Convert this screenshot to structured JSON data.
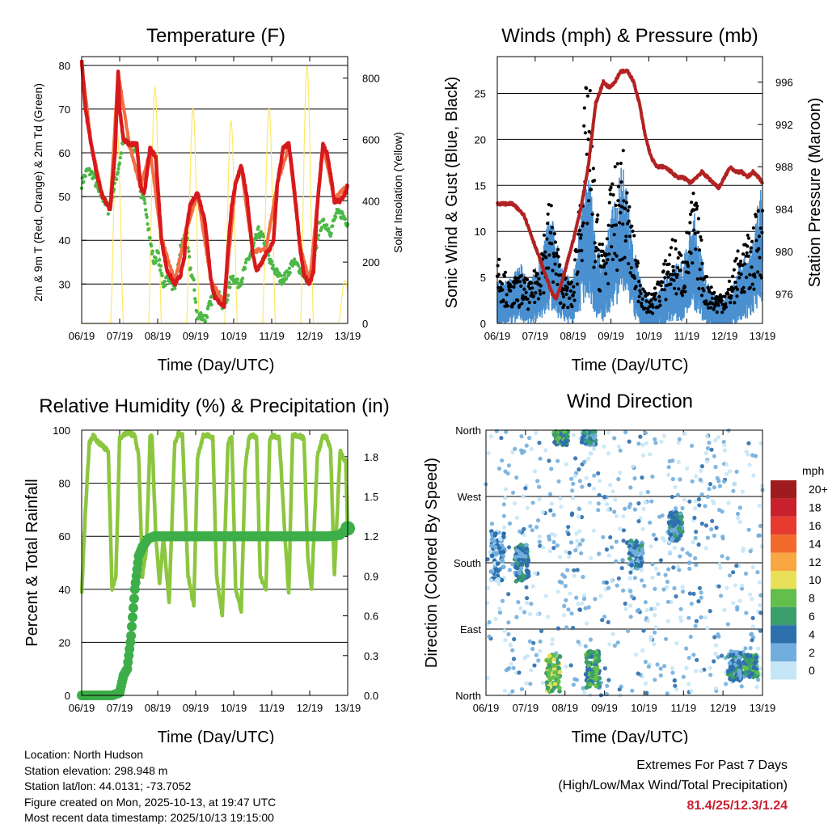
{
  "chart_data": [
    {
      "type": "line",
      "title": "Temperature (F)",
      "xlabel": "Time (Day/UTC)",
      "ylabel": "2m & 9m T (Red, Orange) & 2m Td (Green)",
      "ylabel_right": "Solar Insolation (Yellow)",
      "xticks": [
        "06/19",
        "07/19",
        "08/19",
        "09/19",
        "10/19",
        "11/19",
        "12/19",
        "13/19"
      ],
      "ylim": [
        21,
        82
      ],
      "yticks": [
        30,
        40,
        50,
        60,
        70,
        80
      ],
      "ylim_right": [
        0,
        870
      ],
      "yticks_right": [
        0,
        200,
        400,
        600,
        800
      ],
      "grid": true,
      "x_unit": "days since 06/19 19Z",
      "series": [
        {
          "name": "2m T",
          "color": "#d7191c",
          "x": [
            0,
            0.1,
            0.25,
            0.4,
            0.55,
            0.75,
            0.88,
            0.96,
            1.0,
            1.1,
            1.25,
            1.45,
            1.55,
            1.65,
            1.8,
            1.95,
            2.1,
            2.25,
            2.45,
            2.6,
            2.7,
            2.75,
            2.85,
            3.05,
            3.25,
            3.4,
            3.5,
            3.6,
            3.75,
            3.85,
            3.95,
            4.05,
            4.2,
            4.35,
            4.5,
            4.6,
            4.75,
            4.85,
            4.95,
            5.05,
            5.15,
            5.3,
            5.45,
            5.55,
            5.65,
            5.75,
            5.85,
            6.0,
            6.1,
            6.2,
            6.35,
            6.45,
            6.55,
            6.65,
            6.8,
            6.95,
            7.0
          ],
          "values": [
            81,
            70,
            62,
            55,
            50,
            47,
            60,
            79,
            70,
            63,
            62,
            62,
            52,
            51,
            61,
            59,
            40,
            33,
            30,
            32,
            36,
            42,
            48,
            51,
            44,
            31,
            27,
            26,
            25,
            38,
            48,
            53,
            57,
            50,
            37,
            33,
            35,
            37,
            38,
            40,
            53,
            61,
            62,
            55,
            47,
            38,
            32,
            30,
            33,
            48,
            62,
            60,
            55,
            49,
            49,
            51,
            53
          ]
        },
        {
          "name": "9m T",
          "color": "#f46d43",
          "x": [
            0,
            0.25,
            0.55,
            0.75,
            0.96,
            1.25,
            1.55,
            1.8,
            2.1,
            2.45,
            2.75,
            3.05,
            3.4,
            3.75,
            4.05,
            4.2,
            4.5,
            4.85,
            5.15,
            5.45,
            5.75,
            6.0,
            6.35,
            6.65,
            7.0
          ],
          "values": [
            80.5,
            62,
            50,
            47.5,
            78.5,
            62,
            52,
            60.5,
            40.5,
            30.5,
            42.5,
            50.5,
            31,
            25.5,
            53,
            56.5,
            37.5,
            38,
            53,
            61.5,
            38.5,
            30.5,
            61.5,
            49.5,
            52.5
          ]
        },
        {
          "name": "2m Td",
          "color": "#4db848",
          "x": [
            0,
            0.15,
            0.3,
            0.45,
            0.55,
            0.7,
            0.85,
            1.0,
            1.1,
            1.25,
            1.45,
            1.55,
            1.7,
            1.8,
            1.9,
            2.0,
            2.15,
            2.3,
            2.45,
            2.6,
            2.75,
            2.85,
            2.95,
            3.05,
            3.15,
            3.25,
            3.4,
            3.55,
            3.7,
            3.8,
            3.95,
            4.1,
            4.2,
            4.35,
            4.5,
            4.65,
            4.8,
            4.95,
            5.1,
            5.25,
            5.4,
            5.55,
            5.7,
            5.85,
            6.0,
            6.1,
            6.25,
            6.4,
            6.55,
            6.7,
            6.85,
            7.0
          ],
          "values": [
            53,
            56,
            55,
            51,
            50,
            47,
            52,
            58,
            63,
            62,
            61,
            51,
            47,
            40,
            35,
            37,
            30,
            32,
            28,
            38,
            42,
            34,
            30,
            22,
            23,
            22,
            26,
            29,
            25,
            26,
            32,
            30,
            31,
            35,
            38,
            42,
            40,
            35,
            33,
            31,
            32,
            35,
            34,
            32,
            31,
            34,
            43,
            44,
            42,
            46,
            46,
            44
          ]
        },
        {
          "name": "Solar Insolation",
          "color": "#fde867",
          "axis": "right",
          "peaks_x": [
            0.93,
            1.93,
            2.93,
            3.93,
            4.93,
            5.93,
            6.93
          ],
          "peaks": [
            640,
            770,
            700,
            660,
            700,
            840,
            140
          ]
        }
      ]
    },
    {
      "type": "scatter",
      "title": "Winds (mph) & Pressure (mb)",
      "xlabel": "Time (Day/UTC)",
      "ylabel": "Sonic Wind & Gust (Blue, Black)",
      "ylabel_right": "Station Pressure (Maroon)",
      "xticks": [
        "06/19",
        "07/19",
        "08/19",
        "09/19",
        "10/19",
        "11/19",
        "12/19",
        "13/19"
      ],
      "ylim": [
        0,
        29
      ],
      "yticks": [
        0,
        5,
        10,
        15,
        20,
        25
      ],
      "ylim_right": [
        973.2,
        998.4
      ],
      "yticks_right": [
        976,
        980,
        984,
        988,
        992,
        996
      ],
      "grid": true,
      "x_unit": "days since 06/19 19Z",
      "series": [
        {
          "name": "Sonic Wind",
          "color": "#4a90d0",
          "x": [
            0,
            0.3,
            0.6,
            0.9,
            1.2,
            1.4,
            1.7,
            2.0,
            2.2,
            2.4,
            2.6,
            2.8,
            3.0,
            3.3,
            3.6,
            3.9,
            4.1,
            4.4,
            4.6,
            4.9,
            5.2,
            5.5,
            5.8,
            6.1,
            6.4,
            6.7,
            7.0
          ],
          "values": [
            2,
            2,
            3,
            2,
            4,
            6,
            3,
            2,
            6,
            9,
            4,
            3,
            6,
            9,
            4,
            1,
            1,
            2,
            3,
            3,
            6,
            2,
            1,
            1,
            3,
            4,
            8
          ]
        },
        {
          "name": "Gust",
          "color": "#000000",
          "x": [
            0,
            0.3,
            0.6,
            0.9,
            1.2,
            1.4,
            1.7,
            2.0,
            2.2,
            2.4,
            2.6,
            2.8,
            3.0,
            3.3,
            3.6,
            3.9,
            4.1,
            4.4,
            4.6,
            4.9,
            5.2,
            5.5,
            5.8,
            6.1,
            6.4,
            6.7,
            7.0
          ],
          "values": [
            8,
            4,
            5,
            4,
            9,
            13,
            5,
            4,
            16,
            27,
            12,
            8,
            14,
            18,
            9,
            3,
            3,
            6,
            9,
            7,
            14,
            5,
            3,
            4,
            8,
            9,
            14
          ]
        },
        {
          "name": "Station Pressure",
          "color": "#b22222",
          "axis": "right",
          "x": [
            0,
            0.2,
            0.4,
            0.55,
            0.7,
            0.85,
            1.0,
            1.15,
            1.3,
            1.45,
            1.55,
            1.7,
            1.85,
            2.0,
            2.2,
            2.4,
            2.6,
            2.8,
            2.95,
            3.1,
            3.25,
            3.45,
            3.6,
            3.75,
            3.9,
            4.05,
            4.2,
            4.4,
            4.6,
            4.75,
            4.9,
            5.1,
            5.25,
            5.4,
            5.55,
            5.7,
            5.85,
            6.0,
            6.15,
            6.3,
            6.45,
            6.6,
            6.75,
            6.9,
            7.0
          ],
          "values": [
            984.5,
            984.5,
            984.5,
            984,
            983.5,
            982,
            980.5,
            979,
            977.5,
            976,
            975.5,
            977,
            979,
            981,
            984,
            988,
            994,
            996,
            995.5,
            996,
            997,
            997,
            996,
            994,
            991,
            989,
            988,
            988,
            987.5,
            987,
            987,
            986.5,
            987,
            987.5,
            987,
            986.5,
            986,
            987,
            988,
            987.5,
            987.5,
            987,
            987.5,
            987,
            986.5
          ]
        }
      ]
    },
    {
      "type": "line",
      "title": "Relative Humidity (%) & Precipitation (in)",
      "xlabel": "Time (Day/UTC)",
      "ylabel": "Percent & Total Rainfall",
      "xticks": [
        "06/19",
        "07/19",
        "08/19",
        "09/19",
        "10/19",
        "11/19",
        "12/19",
        "13/19"
      ],
      "ylim": [
        0,
        100
      ],
      "yticks": [
        0,
        20,
        40,
        60,
        80,
        100
      ],
      "ylim_right": [
        0,
        2
      ],
      "yticks_right": [
        "0.0",
        "0.3",
        "0.6",
        "0.9",
        "1.2",
        "1.5",
        "1.8"
      ],
      "grid": true,
      "x_unit": "days since 06/19 19Z",
      "series": [
        {
          "name": "Relative Humidity",
          "color": "#8cc63f",
          "x": [
            0,
            0.1,
            0.2,
            0.3,
            0.4,
            0.55,
            0.7,
            0.8,
            0.9,
            1.0,
            1.2,
            1.4,
            1.5,
            1.6,
            1.7,
            1.8,
            1.85,
            1.95,
            2.05,
            2.15,
            2.3,
            2.45,
            2.55,
            2.65,
            2.8,
            2.95,
            3.05,
            3.2,
            3.35,
            3.45,
            3.55,
            3.7,
            3.85,
            3.95,
            4.05,
            4.2,
            4.3,
            4.4,
            4.5,
            4.6,
            4.7,
            4.85,
            4.95,
            5.05,
            5.2,
            5.35,
            5.45,
            5.55,
            5.7,
            5.85,
            5.95,
            6.05,
            6.2,
            6.35,
            6.45,
            6.55,
            6.65,
            6.8,
            6.95,
            7.0
          ],
          "values": [
            38,
            70,
            95,
            98,
            96,
            94,
            92,
            40,
            45,
            97,
            99,
            98,
            90,
            45,
            55,
            97,
            98,
            60,
            42,
            60,
            35,
            95,
            99,
            98,
            45,
            34,
            90,
            98,
            98,
            97,
            45,
            30,
            95,
            98,
            40,
            32,
            85,
            97,
            98,
            97,
            45,
            40,
            97,
            98,
            97,
            60,
            38,
            98,
            98,
            97,
            52,
            40,
            90,
            98,
            97,
            93,
            45,
            92,
            88,
            62
          ]
        },
        {
          "name": "Total Rainfall",
          "color": "#3dae49",
          "axis": "right",
          "x": [
            0,
            0.4,
            0.8,
            1.0,
            1.1,
            1.2,
            1.3,
            1.4,
            1.5,
            1.6,
            1.75,
            1.9,
            2.1,
            2.5,
            3.0,
            3.5,
            4.0,
            4.5,
            5.0,
            5.5,
            6.0,
            6.5,
            6.8,
            6.9,
            7.0
          ],
          "values": [
            0,
            0,
            0,
            0.02,
            0.15,
            0.2,
            0.45,
            0.8,
            1.05,
            1.12,
            1.18,
            1.2,
            1.2,
            1.2,
            1.2,
            1.2,
            1.2,
            1.2,
            1.2,
            1.2,
            1.2,
            1.2,
            1.21,
            1.24,
            1.26
          ]
        }
      ]
    },
    {
      "type": "scatter",
      "title": "Wind Direction",
      "xlabel": "Time (Day/UTC)",
      "ylabel": "Direction (Colored By Speed)",
      "xticks": [
        "06/19",
        "07/19",
        "08/19",
        "09/19",
        "10/19",
        "11/19",
        "12/19",
        "13/19"
      ],
      "ylim": [
        0,
        360
      ],
      "yticks": [
        "North",
        "East",
        "South",
        "West",
        "North"
      ],
      "grid": true,
      "x_unit": "days since 06/19 19Z",
      "clusters": [
        {
          "x": 0.3,
          "dir": 190,
          "spread": 35,
          "speed": 2
        },
        {
          "x": 0.9,
          "dir": 180,
          "spread": 25,
          "speed": 4
        },
        {
          "x": 1.7,
          "dir": 30,
          "spread": 25,
          "speed": 8
        },
        {
          "x": 1.9,
          "dir": 350,
          "spread": 10,
          "speed": 6
        },
        {
          "x": 2.7,
          "dir": 35,
          "spread": 25,
          "speed": 6
        },
        {
          "x": 2.6,
          "dir": 350,
          "spread": 10,
          "speed": 4
        },
        {
          "x": 3.8,
          "dir": 190,
          "spread": 20,
          "speed": 3
        },
        {
          "x": 4.8,
          "dir": 230,
          "spread": 20,
          "speed": 4
        },
        {
          "x": 6.3,
          "dir": 40,
          "spread": 20,
          "speed": 4
        },
        {
          "x": 6.7,
          "dir": 40,
          "spread": 15,
          "speed": 5
        }
      ],
      "colorbar": {
        "title": "mph",
        "labels": [
          "20+",
          "18",
          "16",
          "14",
          "12",
          "10",
          "8",
          "6",
          "4",
          "2",
          "0"
        ],
        "colors": [
          "#9e1b1f",
          "#c8202d",
          "#e63b2e",
          "#f26b2c",
          "#f9a743",
          "#e9e05a",
          "#63be4b",
          "#3a9e6d",
          "#2e6fad",
          "#72aedd",
          "#c5e6f6"
        ]
      }
    }
  ],
  "footer": {
    "location": "Location: North Hudson",
    "elevation": "Station elevation: 298.948 m",
    "latlon": "Station lat/lon: 44.0131; -73.7052",
    "created": "Figure created on Mon, 2025-10-13, at 19:47 UTC",
    "recent": "Most recent data timestamp: 2025/10/13 19:15:00",
    "extremes_title": "Extremes For Past 7 Days",
    "extremes_sub": "(High/Low/Max Wind/Total Precipitation)",
    "extremes_values": "81.4/25/12.3/1.24"
  }
}
